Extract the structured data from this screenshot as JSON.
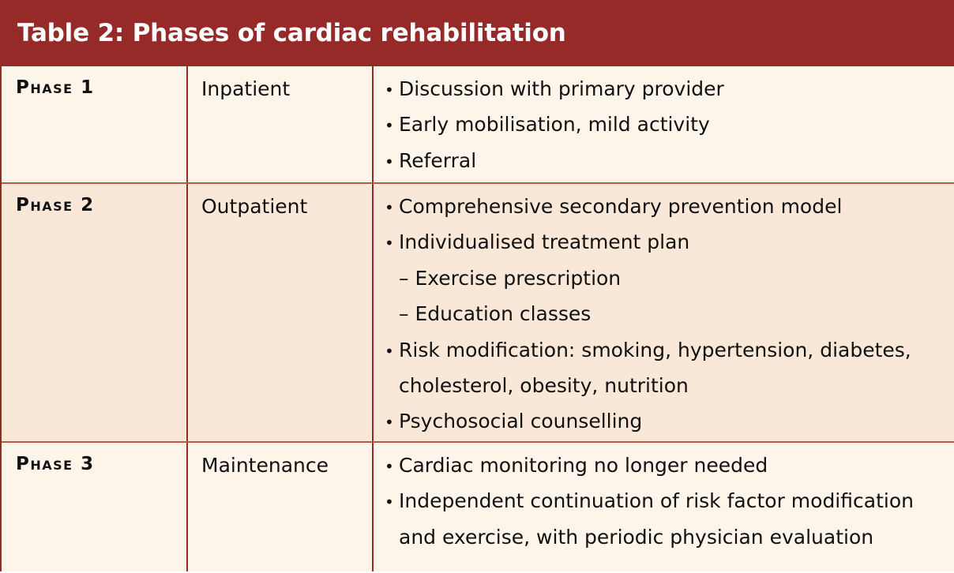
{
  "title": "Table 2: Phases of cardiac rehabilitation",
  "rows": [
    {
      "phase": "Phase 1",
      "setting": "Inpatient",
      "items": {
        "b1": "Discussion with primary provider",
        "b2": "Early mobilisation, mild activity",
        "b3": "Referral"
      }
    },
    {
      "phase": "Phase 2",
      "setting": "Outpatient",
      "items": {
        "b1": "Comprehensive secondary prevention model",
        "b2": "Individualised treatment plan",
        "s1": "– Exercise prescription",
        "s2": "– Education classes",
        "b3": "Risk modification: smoking, hypertension, diabetes,",
        "b3_cont": "cholesterol, obesity, nutrition",
        "b4": "Psychosocial counselling"
      }
    },
    {
      "phase": "Phase 3",
      "setting": "Maintenance",
      "items": {
        "b1": "Cardiac monitoring no longer needed",
        "b2": "Independent continuation of risk factor modification",
        "b2_cont": "and exercise, with periodic physician evaluation"
      }
    }
  ],
  "colors": {
    "header_bg": "#962a28",
    "row_light": "#fdf4ea",
    "row_dark": "#f9e8d8",
    "divider": "#b85a48"
  }
}
